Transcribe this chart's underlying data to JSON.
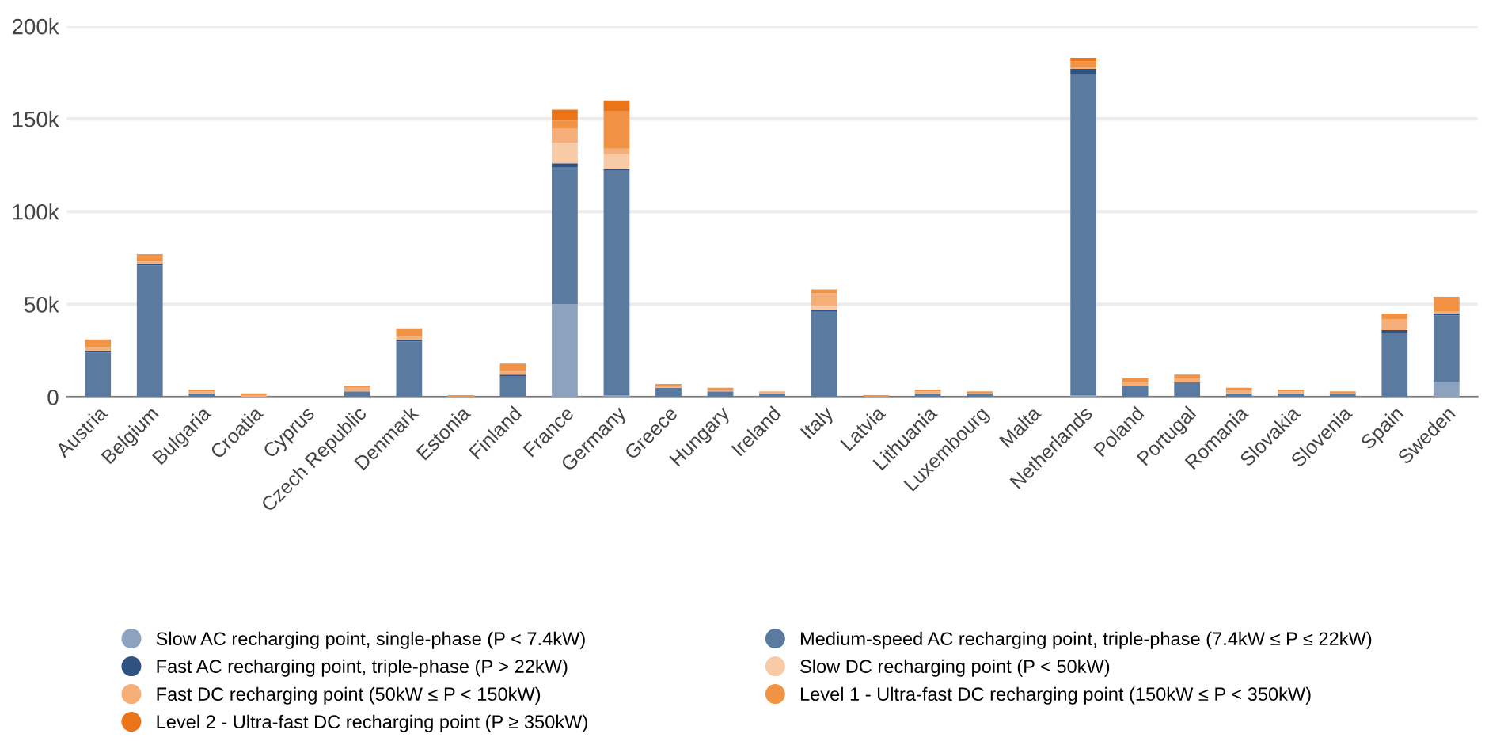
{
  "chart_data": {
    "type": "bar",
    "stacked": true,
    "categories": [
      "Austria",
      "Belgium",
      "Bulgaria",
      "Croatia",
      "Cyprus",
      "Czech Republic",
      "Denmark",
      "Estonia",
      "Finland",
      "France",
      "Germany",
      "Greece",
      "Hungary",
      "Ireland",
      "Italy",
      "Latvia",
      "Lithuania",
      "Luxembourg",
      "Malta",
      "Netherlands",
      "Poland",
      "Portugal",
      "Romania",
      "Slovakia",
      "Slovenia",
      "Spain",
      "Sweden"
    ],
    "series": [
      {
        "name": "Slow AC recharging point, single-phase (P < 7.4kW)",
        "color": "#8da2bf",
        "values": [
          0,
          0,
          0,
          0,
          0,
          0,
          0,
          0,
          0,
          50000,
          1000,
          0,
          0,
          0,
          0,
          0,
          0,
          0,
          0,
          1000,
          0,
          0,
          0,
          0,
          0,
          0,
          8000
        ]
      },
      {
        "name": "Medium-speed AC recharging point, triple-phase (7.4kW ≤ P ≤ 22kW)",
        "color": "#5a7aa0",
        "values": [
          24000,
          71000,
          2000,
          0,
          0,
          3000,
          30000,
          0,
          11000,
          74000,
          121000,
          5000,
          3000,
          2000,
          46000,
          0,
          2000,
          2000,
          0,
          173000,
          6000,
          8000,
          2000,
          2000,
          2000,
          34000,
          36000
        ]
      },
      {
        "name": "Fast AC recharging point, triple-phase (P > 22kW)",
        "color": "#2f5282",
        "values": [
          1000,
          1000,
          0,
          0,
          0,
          0,
          1000,
          0,
          1000,
          2000,
          1000,
          0,
          0,
          0,
          1000,
          0,
          0,
          0,
          0,
          3000,
          0,
          0,
          0,
          0,
          0,
          2000,
          1000
        ]
      },
      {
        "name": "Slow DC recharging point (P < 50kW)",
        "color": "#f8cba6",
        "values": [
          0,
          0,
          0,
          0,
          0,
          0,
          0,
          0,
          0,
          11000,
          8000,
          0,
          0,
          0,
          2000,
          0,
          0,
          0,
          0,
          0,
          0,
          0,
          0,
          0,
          0,
          0,
          0
        ]
      },
      {
        "name": "Fast DC recharging point (50kW ≤ P < 150kW)",
        "color": "#f5ae78",
        "values": [
          2000,
          1000,
          1000,
          1000,
          0,
          2000,
          2000,
          0,
          2000,
          8000,
          3000,
          1000,
          1000,
          1000,
          7000,
          0,
          1000,
          0,
          0,
          1000,
          2000,
          2000,
          2000,
          1000,
          0,
          6000,
          1000
        ]
      },
      {
        "name": "Level 1 - Ultra-fast DC recharging point (150kW ≤ P < 350kW)",
        "color": "#f29245",
        "values": [
          4000,
          4000,
          1000,
          1000,
          0,
          1000,
          4000,
          1000,
          4000,
          4000,
          20000,
          1000,
          1000,
          0,
          2000,
          1000,
          1000,
          1000,
          0,
          3000,
          2000,
          2000,
          1000,
          1000,
          1000,
          3000,
          8000
        ]
      },
      {
        "name": "Level 2 - Ultra-fast DC recharging point (P ≥ 350kW)",
        "color": "#ec7418",
        "values": [
          0,
          0,
          0,
          0,
          0,
          0,
          0,
          0,
          0,
          6000,
          6000,
          0,
          0,
          0,
          0,
          0,
          0,
          0,
          0,
          2000,
          0,
          0,
          0,
          0,
          0,
          0,
          0
        ]
      }
    ],
    "ylim": [
      0,
      200000
    ],
    "yticks": [
      0,
      {
        "value": 50000,
        "label": "50k"
      },
      {
        "value": 100000,
        "label": "100k"
      },
      {
        "value": 150000,
        "label": "150k"
      },
      {
        "value": 200000,
        "label": "200k"
      }
    ],
    "grid": "y",
    "legend": "bottom",
    "marker": "circle"
  }
}
